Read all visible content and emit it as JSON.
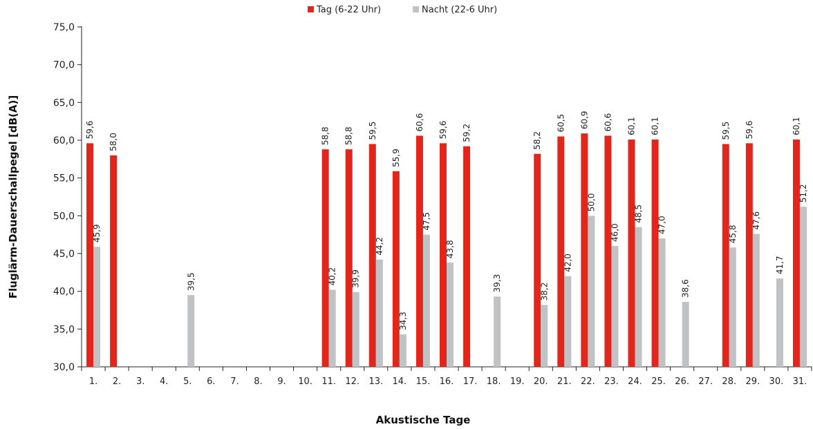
{
  "chart_data": {
    "type": "bar",
    "title": "",
    "xlabel": "Akustische Tage",
    "ylabel": "Fluglärm-Dauerschallpegel [dB(A)]",
    "ylim": [
      30,
      75
    ],
    "yticks": [
      "30,0",
      "35,0",
      "40,0",
      "45,0",
      "50,0",
      "55,0",
      "60,0",
      "65,0",
      "70,0",
      "75,0"
    ],
    "legend_position": "top-center",
    "grid": false,
    "categories": [
      "1.",
      "2.",
      "3.",
      "4.",
      "5.",
      "6.",
      "7.",
      "8.",
      "9.",
      "10.",
      "11.",
      "12.",
      "13.",
      "14.",
      "15.",
      "16.",
      "17.",
      "18.",
      "19.",
      "20.",
      "21.",
      "22.",
      "23.",
      "24.",
      "25.",
      "26.",
      "27.",
      "28.",
      "29.",
      "30.",
      "31."
    ],
    "series": [
      {
        "name": "Tag (6-22 Uhr)",
        "color": "#e3261b",
        "values": [
          59.6,
          58.0,
          null,
          null,
          null,
          null,
          null,
          null,
          null,
          null,
          58.8,
          58.8,
          59.5,
          55.9,
          60.6,
          59.6,
          59.2,
          null,
          null,
          58.2,
          60.5,
          60.9,
          60.6,
          60.1,
          60.1,
          null,
          null,
          59.5,
          59.6,
          null,
          60.1
        ],
        "labels": [
          "59,6",
          "58,0",
          null,
          null,
          null,
          null,
          null,
          null,
          null,
          null,
          "58,8",
          "58,8",
          "59,5",
          "55,9",
          "60,6",
          "59,6",
          "59,2",
          null,
          null,
          "58,2",
          "60,5",
          "60,9",
          "60,6",
          "60,1",
          "60,1",
          null,
          null,
          "59,5",
          "59,6",
          null,
          "60,1"
        ]
      },
      {
        "name": "Nacht (22-6 Uhr)",
        "color": "#c0c2c3",
        "values": [
          45.9,
          null,
          null,
          null,
          39.5,
          null,
          null,
          null,
          null,
          null,
          40.2,
          39.9,
          44.2,
          34.3,
          47.5,
          43.8,
          null,
          39.3,
          null,
          38.2,
          42.0,
          50.0,
          46.0,
          48.5,
          47.0,
          38.6,
          null,
          45.8,
          47.6,
          41.7,
          51.2
        ],
        "labels": [
          "45,9",
          null,
          null,
          null,
          "39,5",
          null,
          null,
          null,
          null,
          null,
          "40,2",
          "39,9",
          "44,2",
          "34,3",
          "47,5",
          "43,8",
          null,
          "39,3",
          null,
          "38,2",
          "42,0",
          "50,0",
          "46,0",
          "48,5",
          "47,0",
          "38,6",
          null,
          "45,8",
          "47,6",
          "41,7",
          "51,2"
        ]
      }
    ]
  }
}
